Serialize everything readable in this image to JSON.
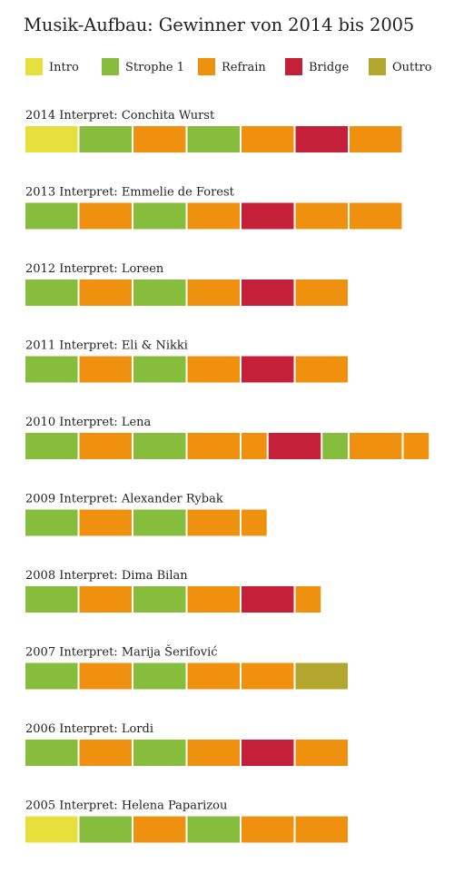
{
  "title": "Musik-Aufbau: Gewinner von 2014 bis 2005",
  "chart_data": {
    "type": "bar",
    "orientation": "horizontal-stacked",
    "unit_note": "each block = one song section",
    "legend_position": "top",
    "legend": [
      {
        "key": "intro",
        "label": "Intro",
        "color": "#e6df3c"
      },
      {
        "key": "strophe",
        "label": "Strophe 1",
        "color": "#86bd3c"
      },
      {
        "key": "refrain",
        "label": "Refrain",
        "color": "#ef900e"
      },
      {
        "key": "bridge",
        "label": "Bridge",
        "color": "#c4203a"
      },
      {
        "key": "outtro",
        "label": "Outtro",
        "color": "#b3a62e"
      }
    ],
    "rows": [
      {
        "label": "2014 Interpret: Conchita Wurst",
        "segments": [
          {
            "type": "intro",
            "len": 1
          },
          {
            "type": "strophe",
            "len": 1
          },
          {
            "type": "refrain",
            "len": 1
          },
          {
            "type": "strophe",
            "len": 1
          },
          {
            "type": "refrain",
            "len": 1
          },
          {
            "type": "bridge",
            "len": 1
          },
          {
            "type": "refrain",
            "len": 1
          }
        ]
      },
      {
        "label": "2013 Interpret: Emmelie de Forest",
        "segments": [
          {
            "type": "strophe",
            "len": 1
          },
          {
            "type": "refrain",
            "len": 1
          },
          {
            "type": "strophe",
            "len": 1
          },
          {
            "type": "refrain",
            "len": 1
          },
          {
            "type": "bridge",
            "len": 1
          },
          {
            "type": "refrain",
            "len": 1
          },
          {
            "type": "refrain",
            "len": 1
          }
        ]
      },
      {
        "label": "2012 Interpret: Loreen",
        "segments": [
          {
            "type": "strophe",
            "len": 1
          },
          {
            "type": "refrain",
            "len": 1
          },
          {
            "type": "strophe",
            "len": 1
          },
          {
            "type": "refrain",
            "len": 1
          },
          {
            "type": "bridge",
            "len": 1
          },
          {
            "type": "refrain",
            "len": 1
          }
        ]
      },
      {
        "label": "2011 Interpret: Eli & Nikki",
        "segments": [
          {
            "type": "strophe",
            "len": 1
          },
          {
            "type": "refrain",
            "len": 1
          },
          {
            "type": "strophe",
            "len": 1
          },
          {
            "type": "refrain",
            "len": 1
          },
          {
            "type": "bridge",
            "len": 1
          },
          {
            "type": "refrain",
            "len": 1
          }
        ]
      },
      {
        "label": "2010 Interpret: Lena",
        "segments": [
          {
            "type": "strophe",
            "len": 1
          },
          {
            "type": "refrain",
            "len": 1
          },
          {
            "type": "strophe",
            "len": 1
          },
          {
            "type": "refrain",
            "len": 1
          },
          {
            "type": "refrain",
            "len": 0.5
          },
          {
            "type": "bridge",
            "len": 1
          },
          {
            "type": "strophe",
            "len": 0.5
          },
          {
            "type": "refrain",
            "len": 1
          },
          {
            "type": "refrain",
            "len": 0.5
          }
        ]
      },
      {
        "label": "2009 Interpret: Alexander Rybak",
        "segments": [
          {
            "type": "strophe",
            "len": 1
          },
          {
            "type": "refrain",
            "len": 1
          },
          {
            "type": "strophe",
            "len": 1
          },
          {
            "type": "refrain",
            "len": 1
          },
          {
            "type": "refrain",
            "len": 0.5
          }
        ]
      },
      {
        "label": "2008 Interpret: Dima Bilan",
        "segments": [
          {
            "type": "strophe",
            "len": 1
          },
          {
            "type": "refrain",
            "len": 1
          },
          {
            "type": "strophe",
            "len": 1
          },
          {
            "type": "refrain",
            "len": 1
          },
          {
            "type": "bridge",
            "len": 1
          },
          {
            "type": "refrain",
            "len": 0.5
          }
        ]
      },
      {
        "label": "2007 Interpret: Marija Šerifović",
        "segments": [
          {
            "type": "strophe",
            "len": 1
          },
          {
            "type": "refrain",
            "len": 1
          },
          {
            "type": "strophe",
            "len": 1
          },
          {
            "type": "refrain",
            "len": 1
          },
          {
            "type": "refrain",
            "len": 1
          },
          {
            "type": "outtro",
            "len": 1
          }
        ]
      },
      {
        "label": "2006 Interpret: Lordi",
        "segments": [
          {
            "type": "strophe",
            "len": 1
          },
          {
            "type": "refrain",
            "len": 1
          },
          {
            "type": "strophe",
            "len": 1
          },
          {
            "type": "refrain",
            "len": 1
          },
          {
            "type": "bridge",
            "len": 1
          },
          {
            "type": "refrain",
            "len": 1
          }
        ]
      },
      {
        "label": "2005 Interpret: Helena Paparizou",
        "segments": [
          {
            "type": "intro",
            "len": 1
          },
          {
            "type": "strophe",
            "len": 1
          },
          {
            "type": "refrain",
            "len": 1
          },
          {
            "type": "strophe",
            "len": 1
          },
          {
            "type": "refrain",
            "len": 1
          },
          {
            "type": "refrain",
            "len": 1
          }
        ]
      }
    ]
  }
}
